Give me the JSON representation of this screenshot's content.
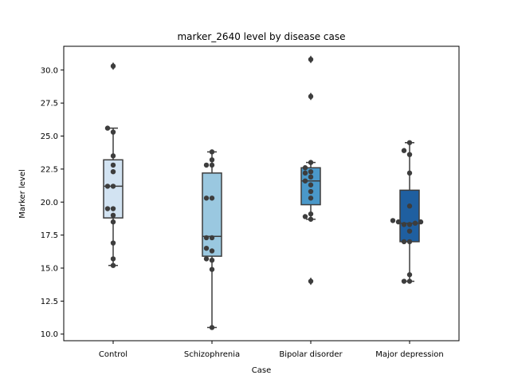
{
  "chart_data": {
    "type": "box",
    "title": "marker_2640 level by disease case",
    "xlabel": "Case",
    "ylabel": "Marker level",
    "ylim": [
      9.5,
      31.8
    ],
    "yticks": [
      10.0,
      12.5,
      15.0,
      17.5,
      20.0,
      22.5,
      25.0,
      27.5,
      30.0
    ],
    "ytick_labels": [
      "10.0",
      "12.5",
      "15.0",
      "17.5",
      "20.0",
      "22.5",
      "25.0",
      "27.5",
      "30.0"
    ],
    "grid": false,
    "categories": [
      "Control",
      "Schizophrenia",
      "Bipolar disorder",
      "Major depression"
    ],
    "colors": [
      "#d2e3f2",
      "#9ac8e0",
      "#4a98c9",
      "#1f5fa0"
    ],
    "boxes": [
      {
        "category": "Control",
        "whisker_low": 15.2,
        "q1": 18.8,
        "median": 21.2,
        "q3": 23.2,
        "whisker_high": 25.6,
        "outliers": [
          30.3
        ]
      },
      {
        "category": "Schizophrenia",
        "whisker_low": 10.5,
        "q1": 15.9,
        "median": 17.4,
        "q3": 22.2,
        "whisker_high": 23.8,
        "outliers": []
      },
      {
        "category": "Bipolar disorder",
        "whisker_low": 18.7,
        "q1": 19.8,
        "median": 21.6,
        "q3": 22.6,
        "whisker_high": 23.0,
        "outliers": [
          30.8,
          28.0,
          14.0
        ]
      },
      {
        "category": "Major depression",
        "whisker_low": 14.0,
        "q1": 17.0,
        "median": 18.4,
        "q3": 20.9,
        "whisker_high": 24.5,
        "outliers": []
      }
    ],
    "points": [
      [
        30.3,
        25.6,
        25.3,
        23.5,
        22.8,
        22.3,
        21.2,
        21.2,
        19.5,
        19.5,
        19.0,
        18.5,
        16.9,
        15.7,
        15.2
      ],
      [
        23.8,
        23.2,
        22.8,
        22.8,
        20.3,
        20.3,
        17.3,
        17.3,
        16.5,
        16.3,
        15.7,
        15.6,
        14.9,
        10.5
      ],
      [
        30.8,
        28.0,
        23.0,
        22.6,
        22.3,
        22.2,
        21.9,
        21.6,
        21.3,
        20.8,
        20.3,
        19.1,
        18.9,
        18.7,
        14.0
      ],
      [
        24.5,
        23.9,
        23.6,
        22.2,
        19.7,
        18.6,
        18.5,
        18.5,
        18.4,
        18.3,
        18.3,
        17.8,
        17.0,
        17.0,
        14.5,
        14.0,
        14.0
      ]
    ]
  }
}
